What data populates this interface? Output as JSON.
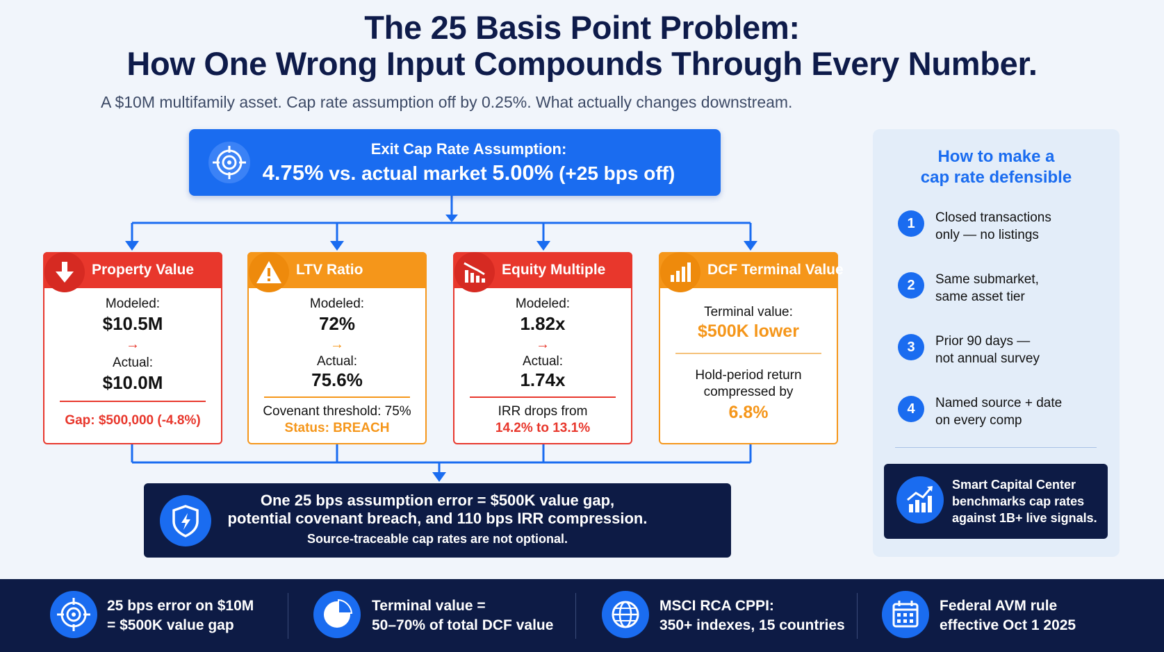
{
  "title": {
    "line1": "The 25 Basis Point Problem:",
    "line2": "How One Wrong Input Compounds Through Every Number."
  },
  "subtitle": "A $10M multifamily asset. Cap rate assumption off by 0.25%. What actually changes downstream.",
  "exit_cap": {
    "label": "Exit Cap Rate Assumption:",
    "assumed": "4.75%",
    "vs_text": "vs. actual market",
    "actual": "5.00%",
    "delta": "(+25 bps off)",
    "icon": "target-icon"
  },
  "cards": {
    "property_value": {
      "title": "Property Value",
      "icon": "arrow-down-icon",
      "modeled_label": "Modeled:",
      "modeled_value": "$10.5M",
      "arrow": "→",
      "actual_label": "Actual:",
      "actual_value": "$10.0M",
      "gap": "Gap: $500,000 (-4.8%)"
    },
    "ltv_ratio": {
      "title": "LTV Ratio",
      "icon": "warning-icon",
      "modeled_label": "Modeled:",
      "modeled_value": "72%",
      "arrow": "→",
      "actual_label": "Actual:",
      "actual_value": "75.6%",
      "threshold": "Covenant threshold: 75%",
      "status": "Status: BREACH"
    },
    "equity_multiple": {
      "title": "Equity Multiple",
      "icon": "declining-chart-icon",
      "modeled_label": "Modeled:",
      "modeled_value": "1.82x",
      "arrow": "→",
      "actual_label": "Actual:",
      "actual_value": "1.74x",
      "irr_label": "IRR drops from",
      "irr_values": "14.2% to 13.1%"
    },
    "dcf_terminal": {
      "title": "DCF Terminal Value",
      "icon": "bar-chart-icon",
      "terminal_label": "Terminal value:",
      "terminal_value": "$500K lower",
      "hold_label_1": "Hold-period return",
      "hold_label_2": "compressed by",
      "hold_value": "6.8%"
    }
  },
  "summary": {
    "line1": "One 25 bps assumption error = $500K value gap,",
    "line2": "potential covenant breach, and 110 bps IRR compression.",
    "line3": "Source-traceable cap rates are not optional.",
    "icon": "shield-icon"
  },
  "sidebar": {
    "title_1": "How to make a",
    "title_2": "cap rate defensible",
    "steps": [
      {
        "num": "1",
        "line1": "Closed transactions",
        "line2": "only — no listings"
      },
      {
        "num": "2",
        "line1": "Same submarket,",
        "line2": "same asset tier"
      },
      {
        "num": "3",
        "line1": "Prior 90 days —",
        "line2": "not annual survey"
      },
      {
        "num": "4",
        "line1": "Named source + date",
        "line2": "on every comp"
      }
    ],
    "promo": {
      "line1": "Smart Capital Center",
      "line2": "benchmarks cap rates",
      "line3": "against 1B+ live signals.",
      "icon": "growth-chart-icon"
    }
  },
  "stats": [
    {
      "icon": "target-icon",
      "line1": "25 bps error on $10M",
      "line2": "= $500K value gap"
    },
    {
      "icon": "pie-chart-icon",
      "line1": "Terminal value =",
      "line2": "50–70% of total DCF value"
    },
    {
      "icon": "globe-icon",
      "line1": "MSCI RCA CPPI:",
      "line2": "350+ indexes, 15 countries"
    },
    {
      "icon": "calendar-icon",
      "line1": "Federal AVM rule",
      "line2": "effective Oct 1 2025"
    }
  ],
  "colors": {
    "navy": "#0d1b45",
    "blue": "#1a6cf0",
    "red": "#e8372c",
    "orange": "#f5961a"
  }
}
